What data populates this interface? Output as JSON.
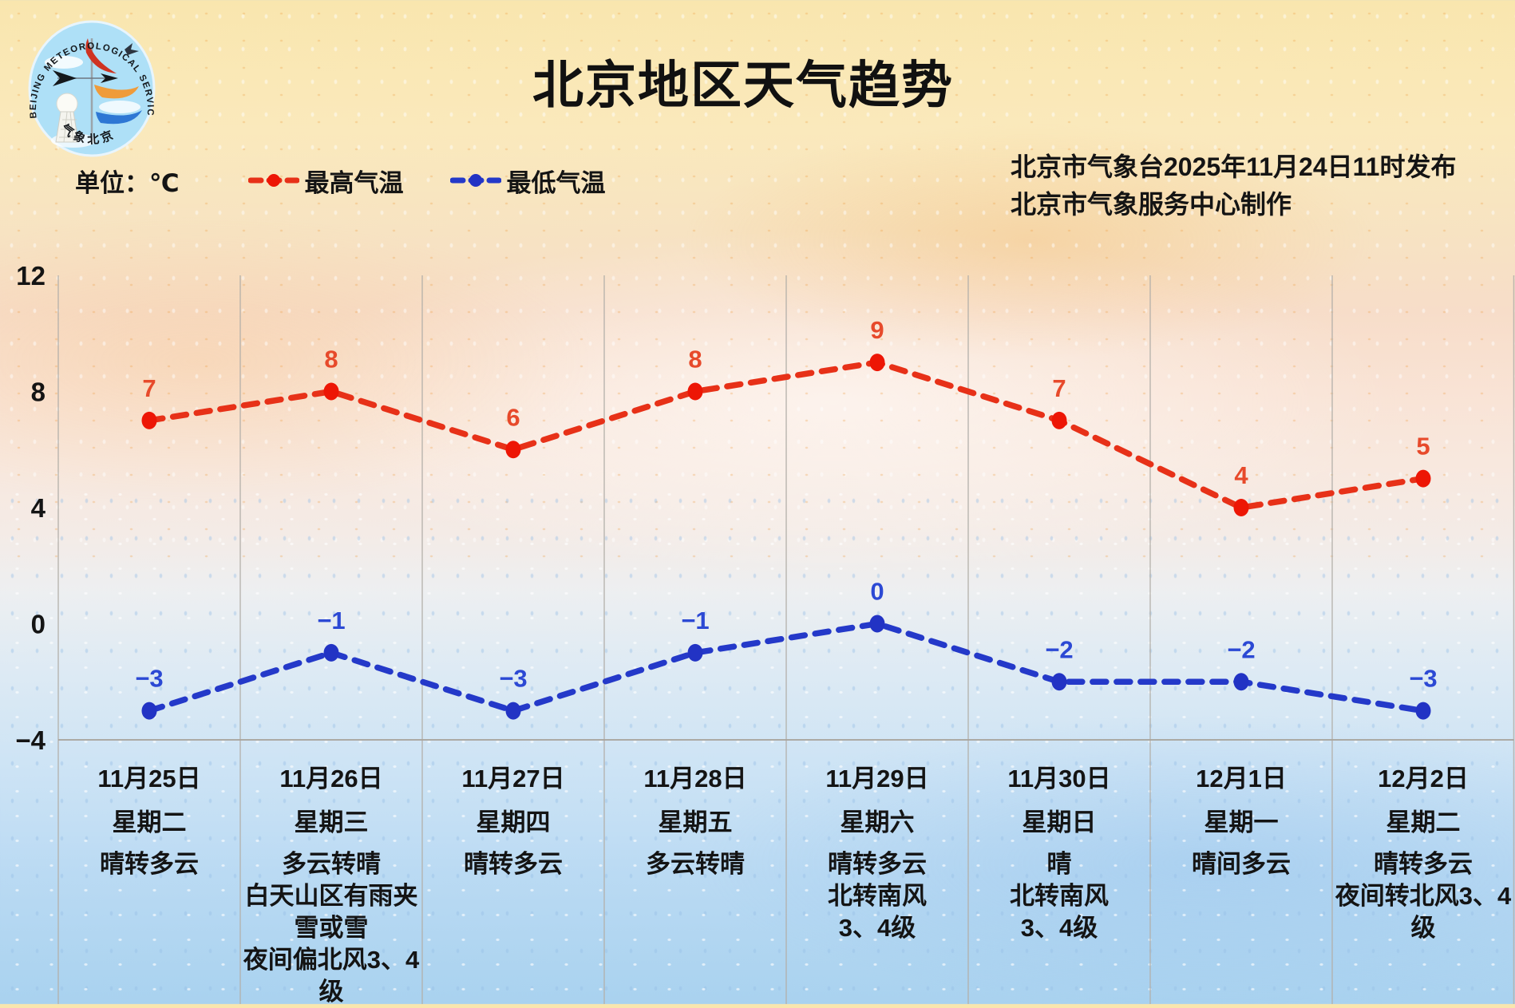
{
  "logo": {
    "arc_text": "BEIJING  METEOROLOGICAL  SERVICE",
    "bottom_text": "气象北京"
  },
  "title": "北京地区天气趋势",
  "unit_label": "单位：℃",
  "release": {
    "line1": "北京市气象台2025年11月24日11时发布",
    "line2": "北京市气象服务中心制作"
  },
  "chart_data": {
    "type": "line",
    "title": "北京地区天气趋势",
    "unit": "℃",
    "categories": [
      "11月25日",
      "11月26日",
      "11月27日",
      "11月28日",
      "11月29日",
      "11月30日",
      "12月1日",
      "12月2日"
    ],
    "weekdays": [
      "星期二",
      "星期三",
      "星期四",
      "星期五",
      "星期六",
      "星期日",
      "星期一",
      "星期二"
    ],
    "weather": [
      [
        "晴转多云"
      ],
      [
        "多云转晴",
        "白天山区有雨夹",
        "雪或雪",
        "夜间偏北风3、4",
        "级"
      ],
      [
        "晴转多云"
      ],
      [
        "多云转晴"
      ],
      [
        "晴转多云",
        "北转南风",
        "3、4级"
      ],
      [
        "晴",
        "北转南风",
        "3、4级"
      ],
      [
        "晴间多云"
      ],
      [
        "晴转多云",
        "夜间转北风3、4",
        "级"
      ]
    ],
    "series": [
      {
        "name": "最高气温",
        "color": "#e73118",
        "dot_color": "#ed1605",
        "label_color": "#e74a2b",
        "values": [
          7,
          8,
          6,
          8,
          9,
          7,
          4,
          5
        ]
      },
      {
        "name": "最低气温",
        "color": "#2439c9",
        "dot_color": "#2233c4",
        "label_color": "#2c49d4",
        "values": [
          -3,
          -1,
          -3,
          -1,
          0,
          -2,
          -2,
          -3
        ]
      }
    ],
    "yticks": [
      12,
      8,
      4,
      0,
      -4
    ],
    "ylim": [
      -4,
      12
    ],
    "grid": {
      "vertical_separators": true,
      "baseline": true,
      "horizontal_gridlines": false
    },
    "legend_position": "top-left"
  }
}
